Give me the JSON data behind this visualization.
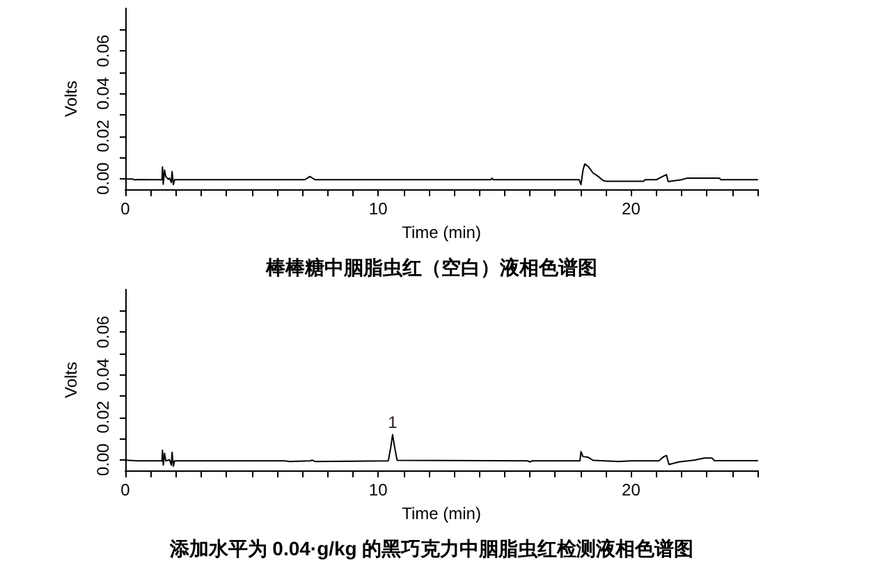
{
  "chart_data": [
    {
      "type": "line",
      "title": "棒棒糖中胭脂虫红（空白）液相色谱图",
      "xlabel": "Time (min)",
      "ylabel": "Volts",
      "color": "#000000",
      "marker": "none",
      "line_style": "solid",
      "x": [
        0,
        0.3,
        0.35,
        0.45,
        1.0,
        1.45,
        1.47,
        1.5,
        1.55,
        1.6,
        1.7,
        1.75,
        1.82,
        1.85,
        1.9,
        1.95,
        2.5,
        7.1,
        7.3,
        7.5,
        14.45,
        14.5,
        14.55,
        17.95,
        18.02,
        18.1,
        18.17,
        18.3,
        18.5,
        18.65,
        18.9,
        19.0,
        20.5,
        20.55,
        21.0,
        21.25,
        21.4,
        21.47,
        21.7,
        22.0,
        22.2,
        23.5,
        23.55,
        25
      ],
      "values": [
        -0.0002,
        -0.0002,
        -0.0006,
        -0.0004,
        -0.0005,
        -0.0005,
        0.0055,
        -0.0026,
        0.004,
        0.001,
        -0.0003,
        0.0002,
        -0.0018,
        0.0033,
        -0.0028,
        -0.0005,
        -0.0005,
        -0.0005,
        0.001,
        -0.0005,
        -0.0005,
        0.0002,
        -0.0005,
        -0.0005,
        -0.0028,
        0.004,
        0.0069,
        0.0058,
        0.0026,
        0.0015,
        -0.0009,
        -0.0012,
        -0.0012,
        -0.0005,
        -0.0005,
        0.001,
        0.0019,
        -0.0014,
        -0.001,
        -0.0005,
        0.0002,
        0.0002,
        -0.0005,
        -0.0005
      ],
      "xlim": [
        0,
        25
      ],
      "xticks": [
        0,
        {
          "value": 1,
          "label": null
        },
        {
          "value": 2,
          "label": null
        },
        {
          "value": 3,
          "label": null
        },
        {
          "value": 4,
          "label": null
        },
        {
          "value": 5,
          "label": null
        },
        {
          "value": 6,
          "label": null
        },
        {
          "value": 7,
          "label": null
        },
        {
          "value": 8,
          "label": null
        },
        {
          "value": 9,
          "label": null
        },
        10,
        {
          "value": 11,
          "label": null
        },
        {
          "value": 12,
          "label": null
        },
        {
          "value": 13,
          "label": null
        },
        {
          "value": 14,
          "label": null
        },
        {
          "value": 15,
          "label": null
        },
        {
          "value": 16,
          "label": null
        },
        {
          "value": 17,
          "label": null
        },
        {
          "value": 18,
          "label": null
        },
        {
          "value": 19,
          "label": null
        },
        20,
        {
          "value": 21,
          "label": null
        },
        {
          "value": 22,
          "label": null
        },
        {
          "value": 23,
          "label": null
        },
        {
          "value": 24,
          "label": null
        },
        {
          "value": 25,
          "label": null
        }
      ],
      "ylim": [
        -0.005,
        0.08
      ],
      "yticks": [
        {
          "value": 0,
          "label": "0.00"
        },
        {
          "value": 0.01,
          "label": null
        },
        {
          "value": 0.02,
          "label": "0.02"
        },
        {
          "value": 0.03,
          "label": null
        },
        {
          "value": 0.04,
          "label": "0.04"
        },
        {
          "value": 0.05,
          "label": null
        },
        {
          "value": 0.06,
          "label": "0.06"
        },
        {
          "value": 0.07,
          "label": null
        }
      ]
    },
    {
      "type": "line",
      "title": "添加水平为 0.04·g/kg 的黑巧克力中胭脂虫红检测液相色谱图",
      "xlabel": "Time (min)",
      "ylabel": "Volts",
      "color": "#000000",
      "marker": "none",
      "line_style": "solid",
      "x": [
        0,
        0.5,
        1.45,
        1.47,
        1.5,
        1.55,
        1.6,
        1.75,
        1.82,
        1.85,
        1.9,
        1.95,
        6.3,
        6.5,
        7.3,
        7.4,
        7.5,
        10.4,
        10.5,
        10.57,
        10.65,
        10.75,
        15.9,
        16.0,
        16.1,
        17.98,
        18.02,
        18.1,
        18.3,
        18.5,
        19.5,
        20.0,
        21.1,
        21.3,
        21.4,
        21.5,
        21.9,
        22.5,
        22.9,
        23.2,
        23.3,
        25
      ],
      "values": [
        -0.0002,
        -0.0005,
        -0.0005,
        0.0045,
        -0.0025,
        0.003,
        -0.0005,
        0.0,
        -0.0025,
        0.0035,
        -0.003,
        -0.0005,
        -0.0005,
        -0.0008,
        -0.0005,
        -0.0002,
        -0.0008,
        -0.0005,
        0.006,
        0.0118,
        0.006,
        -0.0003,
        -0.0005,
        -0.001,
        -0.0005,
        -0.0005,
        0.0038,
        0.0015,
        0.0012,
        -0.0003,
        -0.0008,
        -0.0005,
        -0.0005,
        0.0015,
        0.002,
        -0.0022,
        -0.001,
        -0.0002,
        0.0008,
        0.0008,
        -0.0004,
        -0.0004
      ],
      "annotations": [
        {
          "text": "1",
          "x": 10.57,
          "y": 0.0118
        }
      ],
      "xlim": [
        0,
        25
      ],
      "xticks": [
        0,
        {
          "value": 1,
          "label": null
        },
        {
          "value": 2,
          "label": null
        },
        {
          "value": 3,
          "label": null
        },
        {
          "value": 4,
          "label": null
        },
        {
          "value": 5,
          "label": null
        },
        {
          "value": 6,
          "label": null
        },
        {
          "value": 7,
          "label": null
        },
        {
          "value": 8,
          "label": null
        },
        {
          "value": 9,
          "label": null
        },
        10,
        {
          "value": 11,
          "label": null
        },
        {
          "value": 12,
          "label": null
        },
        {
          "value": 13,
          "label": null
        },
        {
          "value": 14,
          "label": null
        },
        {
          "value": 15,
          "label": null
        },
        {
          "value": 16,
          "label": null
        },
        {
          "value": 17,
          "label": null
        },
        {
          "value": 18,
          "label": null
        },
        {
          "value": 19,
          "label": null
        },
        20,
        {
          "value": 21,
          "label": null
        },
        {
          "value": 22,
          "label": null
        },
        {
          "value": 23,
          "label": null
        },
        {
          "value": 24,
          "label": null
        },
        {
          "value": 25,
          "label": null
        }
      ],
      "ylim": [
        -0.005,
        0.08
      ],
      "yticks": [
        {
          "value": 0,
          "label": "0.00"
        },
        {
          "value": 0.01,
          "label": null
        },
        {
          "value": 0.02,
          "label": "0.02"
        },
        {
          "value": 0.03,
          "label": null
        },
        {
          "value": 0.04,
          "label": "0.04"
        },
        {
          "value": 0.05,
          "label": null
        },
        {
          "value": 0.06,
          "label": "0.06"
        },
        {
          "value": 0.07,
          "label": null
        }
      ]
    }
  ]
}
